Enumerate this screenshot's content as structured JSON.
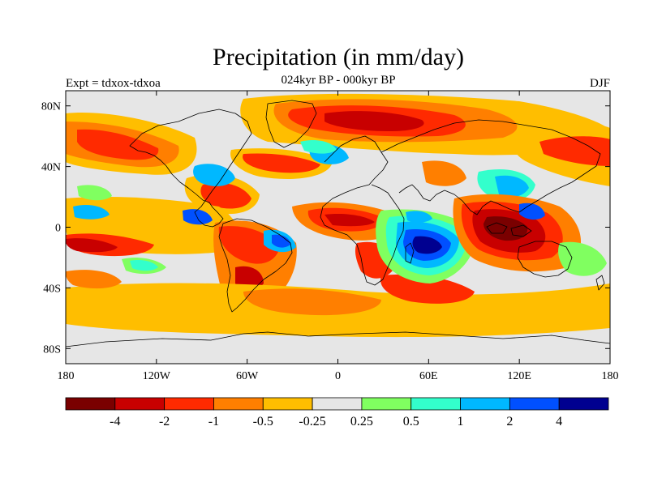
{
  "title": "Precipitation (in mm/day)",
  "subtitle": "024kyr BP - 000kyr BP",
  "left_label": "Expt = tdxox-tdxoa",
  "right_label": "DJF",
  "map": {
    "projection": "cylindrical-equidistant",
    "lon_range": [
      -180,
      180
    ],
    "lat_range": [
      -90,
      90
    ],
    "x_ticks": [
      {
        "lon": -180,
        "label": "180"
      },
      {
        "lon": -120,
        "label": "120W"
      },
      {
        "lon": -60,
        "label": "60W"
      },
      {
        "lon": 0,
        "label": "0"
      },
      {
        "lon": 60,
        "label": "60E"
      },
      {
        "lon": 120,
        "label": "120E"
      },
      {
        "lon": 180,
        "label": "180"
      }
    ],
    "y_ticks": [
      {
        "lat": 80,
        "label": "80N"
      },
      {
        "lat": 40,
        "label": "40N"
      },
      {
        "lat": 0,
        "label": "0"
      },
      {
        "lat": -40,
        "label": "40S"
      },
      {
        "lat": -80,
        "label": "80S"
      }
    ],
    "background_color": "#e6e6e6",
    "coastline_color": "#000000"
  },
  "colorbar": {
    "labels": [
      "-4",
      "-2",
      "-1",
      "-0.5",
      "-0.25",
      "0.25",
      "0.5",
      "1",
      "2",
      "4"
    ],
    "colors": [
      "#7a0000",
      "#c80000",
      "#ff2a00",
      "#ff7f00",
      "#ffbe00",
      "#e6e6e6",
      "#80ff60",
      "#33ffcc",
      "#00b8ff",
      "#0050ff",
      "#000090"
    ]
  }
}
